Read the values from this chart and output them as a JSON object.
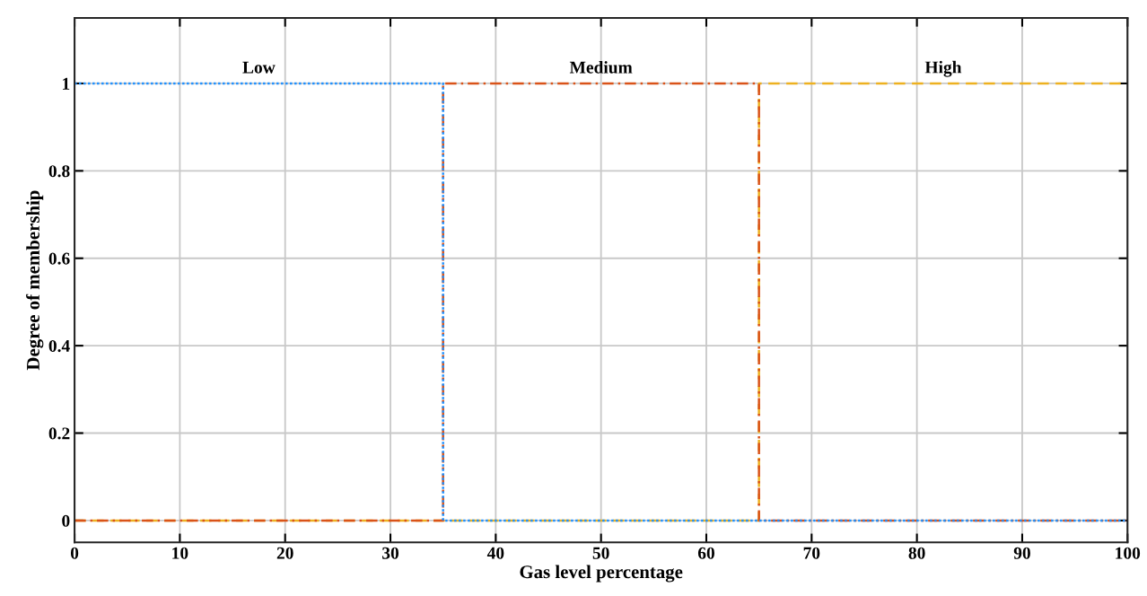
{
  "chart_data": {
    "type": "line",
    "xlabel": "Gas level percentage",
    "ylabel": "Degree of membership",
    "xlim": [
      0,
      100
    ],
    "xticks": [
      0,
      10,
      20,
      30,
      40,
      50,
      60,
      70,
      80,
      90,
      100
    ],
    "ylim": [
      -0.05,
      1.15
    ],
    "yticks": [
      0,
      0.2,
      0.4,
      0.6,
      0.8,
      1
    ],
    "grid": true,
    "legend": false,
    "series": [
      {
        "name": "High",
        "color": "#edb120",
        "line_style": "dashed",
        "x": [
          0,
          65,
          65,
          100
        ],
        "values": [
          0,
          0,
          1,
          1
        ]
      },
      {
        "name": "Medium",
        "color": "#d95319",
        "line_style": "dashdot",
        "x": [
          0,
          35,
          35,
          65,
          65,
          100
        ],
        "values": [
          0,
          0,
          1,
          1,
          0,
          0
        ]
      },
      {
        "name": "Low",
        "color": "#1e90ff",
        "line_style": "dotted",
        "x": [
          0,
          35,
          35,
          100
        ],
        "values": [
          1,
          1,
          0,
          0
        ]
      }
    ]
  }
}
